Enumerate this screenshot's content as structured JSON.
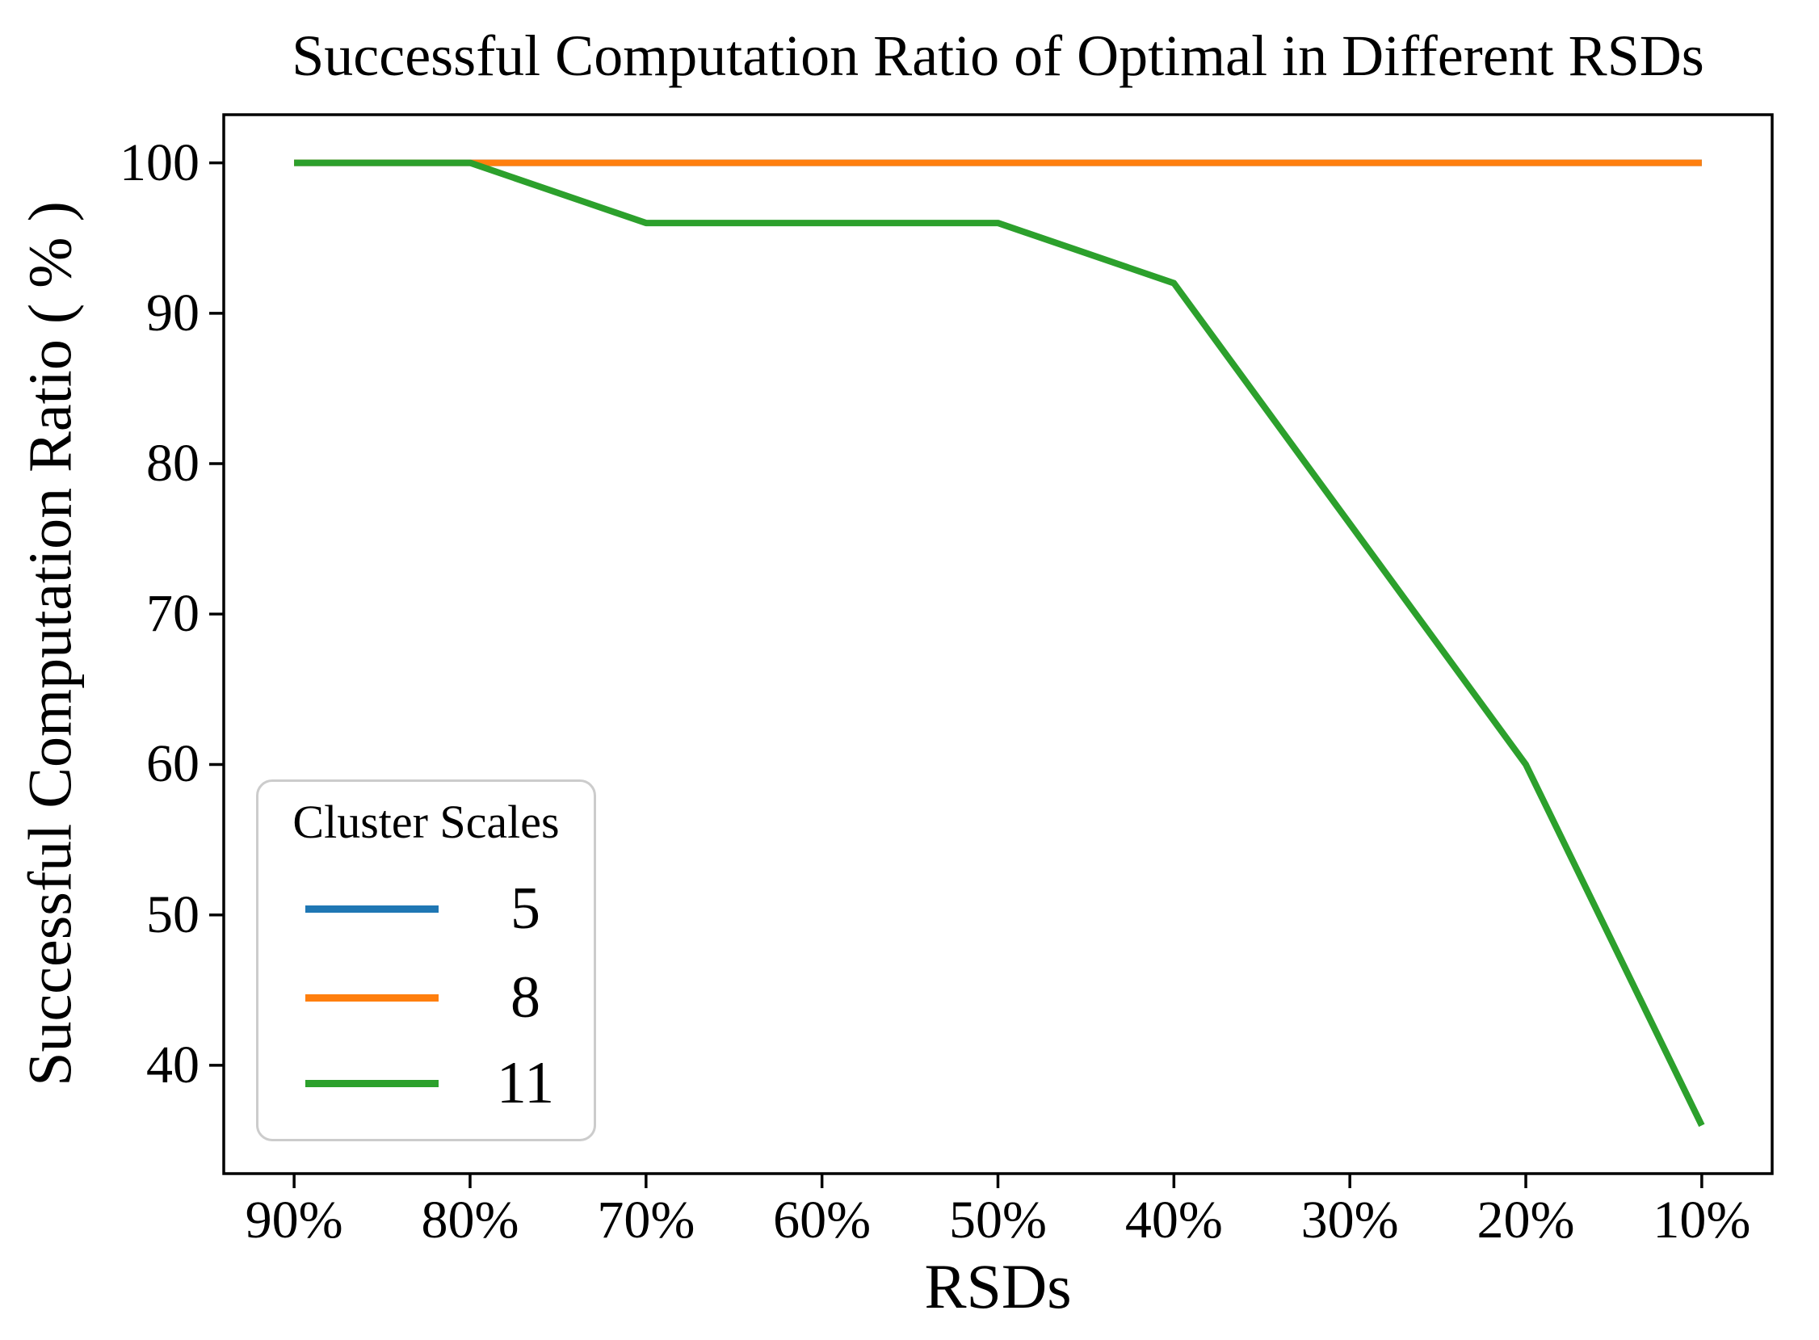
{
  "chart_data": {
    "type": "line",
    "title": "Successful Computation Ratio of Optimal in Different RSDs",
    "xlabel": "RSDs",
    "ylabel": "Successful Computation Ratio ( % )",
    "categories": [
      "90%",
      "80%",
      "70%",
      "60%",
      "50%",
      "40%",
      "30%",
      "20%",
      "10%"
    ],
    "series": [
      {
        "name": "5",
        "color": "#1f77b4",
        "values": [
          100,
          100,
          100,
          100,
          100,
          100,
          100,
          100,
          100
        ]
      },
      {
        "name": "8",
        "color": "#ff7f0e",
        "values": [
          100,
          100,
          100,
          100,
          100,
          100,
          100,
          100,
          100
        ]
      },
      {
        "name": "11",
        "color": "#2ca02c",
        "values": [
          100,
          100,
          96,
          96,
          96,
          92,
          76,
          60,
          36
        ]
      }
    ],
    "y_ticks": [
      40,
      50,
      60,
      70,
      80,
      90,
      100
    ],
    "ylim": [
      32.8,
      103.2
    ],
    "x_margin": 0.4,
    "grid": false,
    "legend": {
      "title": "Cluster Scales",
      "position": "lower left"
    },
    "axis_color": "#000000",
    "background": "#ffffff"
  }
}
